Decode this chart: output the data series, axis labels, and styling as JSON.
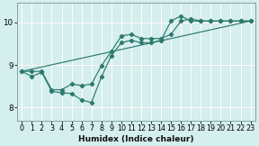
{
  "xlabel": "Humidex (Indice chaleur)",
  "bg_color": "#d5eeee",
  "line_color": "#2d7a6e",
  "grid_color_major": "#ffffff",
  "grid_color_minor": "#ffffff",
  "pink_line_color": "#e8aaaa",
  "xmin": -0.5,
  "xmax": 23.5,
  "ymin": 7.7,
  "ymax": 10.45,
  "yticks": [
    8,
    9,
    10
  ],
  "xticks": [
    0,
    1,
    2,
    3,
    4,
    5,
    6,
    7,
    8,
    9,
    10,
    11,
    12,
    13,
    14,
    15,
    16,
    17,
    18,
    19,
    20,
    21,
    22,
    23
  ],
  "line1_x": [
    0,
    1,
    2,
    3,
    4,
    5,
    6,
    7,
    8,
    9,
    10,
    11,
    12,
    13,
    14,
    15,
    16,
    17,
    18,
    19,
    20,
    21,
    22,
    23
  ],
  "line1_y": [
    8.85,
    8.73,
    8.83,
    8.38,
    8.35,
    8.33,
    8.18,
    8.12,
    8.72,
    9.22,
    9.52,
    9.58,
    9.52,
    9.52,
    9.58,
    10.03,
    10.15,
    10.03,
    10.03,
    10.03,
    10.03,
    10.03,
    10.03,
    10.03
  ],
  "line2_x": [
    0,
    1,
    2,
    3,
    4,
    5,
    6,
    7,
    8,
    9,
    10,
    11,
    12,
    13,
    14,
    15,
    16,
    17,
    18,
    19,
    20,
    21,
    22,
    23
  ],
  "line2_y": [
    8.85,
    8.85,
    8.85,
    8.42,
    8.42,
    8.55,
    8.52,
    8.55,
    8.98,
    9.32,
    9.68,
    9.72,
    9.62,
    9.62,
    9.62,
    9.72,
    10.03,
    10.08,
    10.03,
    10.03,
    10.03,
    10.03,
    10.03,
    10.03
  ],
  "line3_x": [
    0,
    23
  ],
  "line3_y": [
    8.85,
    10.03
  ],
  "xlabel_fontsize": 6.5,
  "xlabel_fontweight": "bold",
  "tick_fontsize": 5.8,
  "lw": 0.85,
  "marker_size": 2.2
}
